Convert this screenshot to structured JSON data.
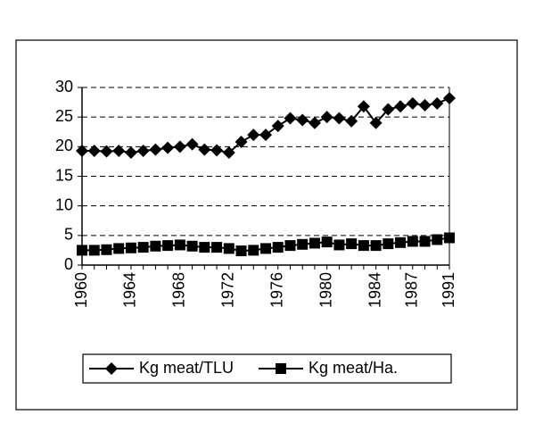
{
  "chart_data": {
    "type": "line",
    "categories": [
      "1960",
      null,
      null,
      null,
      "1964",
      null,
      null,
      null,
      "1968",
      null,
      null,
      null,
      "1972",
      null,
      null,
      null,
      "1976",
      null,
      null,
      null,
      "1980",
      null,
      null,
      null,
      "1984",
      null,
      null,
      "1987",
      null,
      null,
      "1991"
    ],
    "series": [
      {
        "name": "Kg meat/TLU",
        "color": "#000000",
        "marker": "diamond",
        "values": [
          19.3,
          19.3,
          19.2,
          19.3,
          19.0,
          19.3,
          19.5,
          19.8,
          20.0,
          20.4,
          19.5,
          19.4,
          19.0,
          20.8,
          22.0,
          22.0,
          23.5,
          24.8,
          24.5,
          24.0,
          25.0,
          24.8,
          24.3,
          26.8,
          24.0,
          26.3,
          26.8,
          27.3,
          27.0,
          27.3,
          28.2
        ]
      },
      {
        "name": "Kg meat/Ha.",
        "color": "#000000",
        "marker": "square",
        "values": [
          2.5,
          2.5,
          2.6,
          2.8,
          2.9,
          3.0,
          3.2,
          3.3,
          3.4,
          3.2,
          3.0,
          3.0,
          2.8,
          2.4,
          2.5,
          2.8,
          3.0,
          3.3,
          3.5,
          3.7,
          3.9,
          3.4,
          3.6,
          3.3,
          3.3,
          3.6,
          3.8,
          4.0,
          4.0,
          4.3,
          4.6
        ]
      }
    ],
    "ylim": [
      0,
      30
    ],
    "yticks": [
      0,
      5,
      10,
      15,
      20,
      25,
      30
    ],
    "grid": true,
    "legend": "bottom"
  }
}
